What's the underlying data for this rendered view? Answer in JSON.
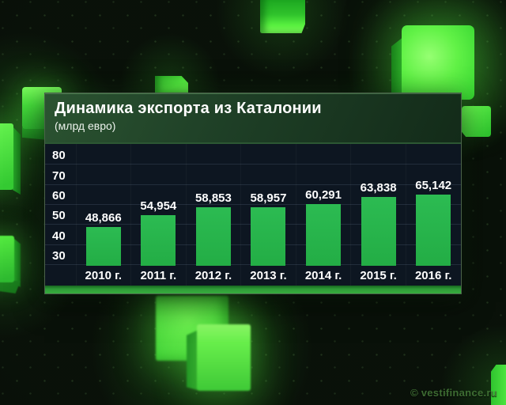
{
  "panel": {
    "title": "Динамика экспорта из Каталонии",
    "subtitle": "(млрд евро)"
  },
  "watermark": "© vestifinance.ru",
  "chart_data": {
    "type": "bar",
    "title": "Динамика экспорта из Каталонии",
    "unit_label": "млрд евро",
    "categories": [
      "2010 г.",
      "2011 г.",
      "2012 г.",
      "2013 г.",
      "2014 г.",
      "2015 г.",
      "2016 г."
    ],
    "values": [
      48.866,
      54.954,
      58.853,
      58.957,
      60.291,
      63.838,
      65.142
    ],
    "value_labels": [
      "48,866",
      "54,954",
      "58,853",
      "58,957",
      "60,291",
      "63,838",
      "65,142"
    ],
    "y_ticks": [
      30,
      40,
      50,
      60,
      70,
      80
    ],
    "ylim": [
      30,
      85
    ],
    "grid": true,
    "legend_position": "none",
    "bar_color": "#25b24a"
  },
  "colors": {
    "accent_green": "#25b24a",
    "panel_header_green": "#1e3f26",
    "plot_background": "#0d1621",
    "page_background": "#070c07"
  }
}
